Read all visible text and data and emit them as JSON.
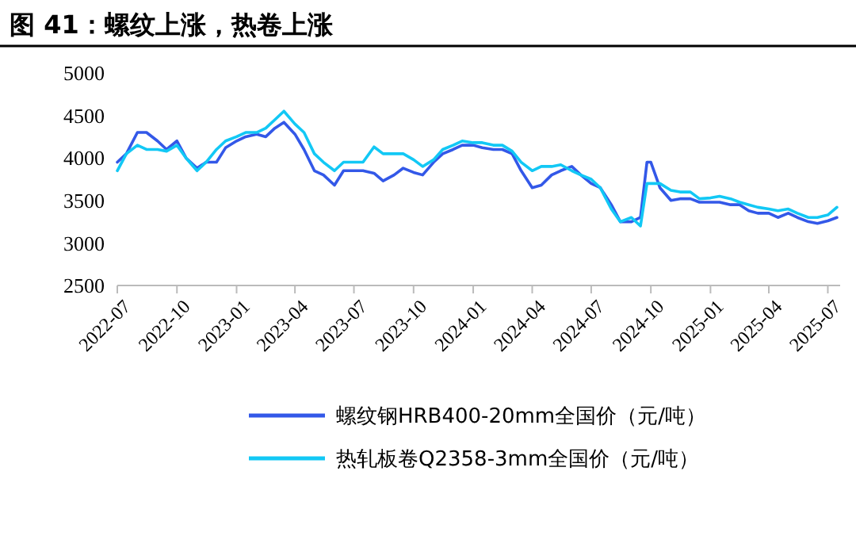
{
  "chart_data": {
    "type": "line",
    "title": "图 41：螺纹上涨，热卷上涨",
    "x": [
      "2022-07-01",
      "2022-07-15",
      "2022-08-01",
      "2022-08-15",
      "2022-09-01",
      "2022-09-15",
      "2022-10-01",
      "2022-10-15",
      "2022-11-01",
      "2022-11-15",
      "2022-12-01",
      "2022-12-15",
      "2023-01-01",
      "2023-01-15",
      "2023-02-01",
      "2023-02-15",
      "2023-03-01",
      "2023-03-15",
      "2023-04-01",
      "2023-04-15",
      "2023-05-01",
      "2023-05-15",
      "2023-06-01",
      "2023-06-15",
      "2023-07-01",
      "2023-07-15",
      "2023-08-01",
      "2023-08-15",
      "2023-09-01",
      "2023-09-15",
      "2023-10-01",
      "2023-10-15",
      "2023-11-01",
      "2023-11-15",
      "2023-12-01",
      "2023-12-15",
      "2024-01-01",
      "2024-01-15",
      "2024-02-01",
      "2024-02-15",
      "2024-03-01",
      "2024-03-15",
      "2024-04-01",
      "2024-04-15",
      "2024-05-01",
      "2024-05-15",
      "2024-06-01",
      "2024-06-15",
      "2024-07-01",
      "2024-07-15",
      "2024-08-01",
      "2024-08-15",
      "2024-09-01",
      "2024-09-15",
      "2024-09-25",
      "2024-10-01",
      "2024-10-15",
      "2024-11-01",
      "2024-11-15",
      "2024-12-01",
      "2024-12-15",
      "2025-01-01",
      "2025-01-15",
      "2025-02-01",
      "2025-02-15",
      "2025-03-01",
      "2025-03-15",
      "2025-04-01",
      "2025-04-15",
      "2025-05-01",
      "2025-05-15",
      "2025-06-01",
      "2025-06-15",
      "2025-07-01",
      "2025-07-15"
    ],
    "series": [
      {
        "name": "螺纹钢HRB400-20mm全国价（元/吨）",
        "color": "#3358e8",
        "values": [
          3950,
          4050,
          4300,
          4300,
          4200,
          4100,
          4200,
          4000,
          3880,
          3950,
          3950,
          4120,
          4200,
          4250,
          4280,
          4250,
          4350,
          4420,
          4280,
          4100,
          3850,
          3800,
          3680,
          3850,
          3850,
          3850,
          3820,
          3730,
          3800,
          3880,
          3830,
          3800,
          3950,
          4050,
          4100,
          4150,
          4150,
          4120,
          4100,
          4100,
          4050,
          3850,
          3650,
          3680,
          3800,
          3850,
          3900,
          3800,
          3700,
          3650,
          3450,
          3250,
          3250,
          3300,
          3950,
          3950,
          3650,
          3500,
          3520,
          3520,
          3480,
          3480,
          3480,
          3450,
          3450,
          3380,
          3350,
          3350,
          3300,
          3350,
          3300,
          3250,
          3230,
          3260,
          3300
        ]
      },
      {
        "name": "热轧板卷Q2358-3mm全国价（元/吨）",
        "color": "#12c8f5",
        "values": [
          3850,
          4050,
          4150,
          4100,
          4100,
          4080,
          4150,
          4000,
          3850,
          3950,
          4100,
          4200,
          4250,
          4300,
          4300,
          4350,
          4450,
          4550,
          4400,
          4300,
          4050,
          3950,
          3850,
          3950,
          3950,
          3950,
          4130,
          4050,
          4050,
          4050,
          3980,
          3900,
          3980,
          4100,
          4150,
          4200,
          4180,
          4180,
          4150,
          4150,
          4080,
          3950,
          3850,
          3900,
          3900,
          3920,
          3850,
          3800,
          3750,
          3650,
          3400,
          3250,
          3300,
          3200,
          3700,
          3700,
          3700,
          3620,
          3600,
          3600,
          3520,
          3530,
          3550,
          3520,
          3480,
          3450,
          3420,
          3400,
          3380,
          3400,
          3350,
          3300,
          3300,
          3330,
          3420
        ]
      }
    ],
    "xlim": [
      "2022-07-01",
      "2025-07-20"
    ],
    "xticks": [
      {
        "value": "2022-07-01",
        "label": "2022-07"
      },
      {
        "value": "2022-10-01",
        "label": "2022-10"
      },
      {
        "value": "2023-01-01",
        "label": "2023-01"
      },
      {
        "value": "2023-04-01",
        "label": "2023-04"
      },
      {
        "value": "2023-07-01",
        "label": "2023-07"
      },
      {
        "value": "2023-10-01",
        "label": "2023-10"
      },
      {
        "value": "2024-01-01",
        "label": "2024-01"
      },
      {
        "value": "2024-04-01",
        "label": "2024-04"
      },
      {
        "value": "2024-07-01",
        "label": "2024-07"
      },
      {
        "value": "2024-10-01",
        "label": "2024-10"
      },
      {
        "value": "2025-01-01",
        "label": "2025-01"
      },
      {
        "value": "2025-04-01",
        "label": "2025-04"
      },
      {
        "value": "2025-07-01",
        "label": "2025-07"
      }
    ],
    "ylim": [
      2500,
      5000
    ],
    "yticks": [
      2500,
      3000,
      3500,
      4000,
      4500,
      5000
    ],
    "grid": false,
    "legend": "bottom",
    "line_style": "solid",
    "marker": "none"
  }
}
